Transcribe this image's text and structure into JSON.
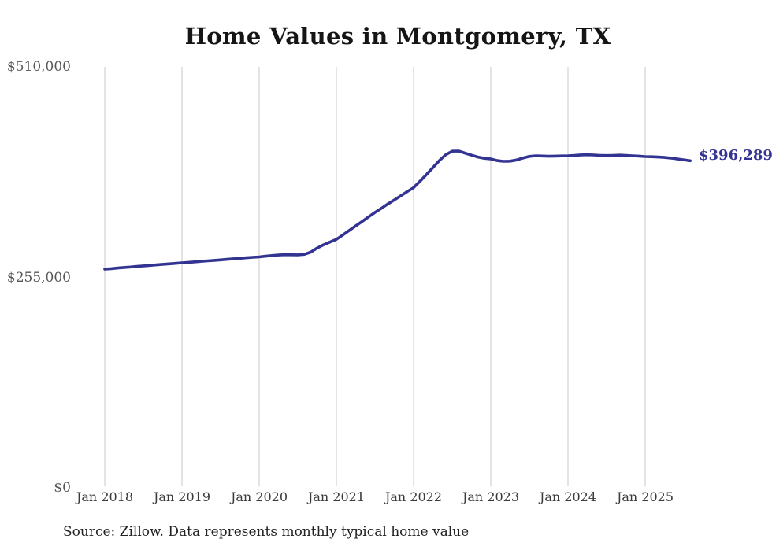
{
  "title": "Home Values in Montgomery, TX",
  "source_note": "Source: Zillow. Data represents monthly typical home value",
  "latest_value_label": "$396,289",
  "colors": {
    "line": "#333392",
    "grid": "#c9c9c9",
    "title": "#151515",
    "y_tick_label": "#565656",
    "x_tick_label": "#3a3a3a",
    "end_label": "#333392",
    "source": "#222222",
    "background": "#ffffff"
  },
  "chart_data": {
    "type": "line",
    "title": "Home Values in Montgomery, TX",
    "series_name": "Monthly typical home value",
    "xlabel": "",
    "ylabel": "",
    "ylim": [
      0,
      510000
    ],
    "grid": "vertical-only",
    "legend": "none",
    "end_label": "$396,289",
    "y_ticks": [
      {
        "value": 0,
        "label": "$0"
      },
      {
        "value": 255000,
        "label": "$255,000"
      },
      {
        "value": 510000,
        "label": "$510,000"
      }
    ],
    "x_ticks": [
      "Jan 2018",
      "Jan 2019",
      "Jan 2020",
      "Jan 2021",
      "Jan 2022",
      "Jan 2023",
      "Jan 2024",
      "Jan 2025"
    ],
    "months": [
      "2018-01",
      "2018-02",
      "2018-03",
      "2018-04",
      "2018-05",
      "2018-06",
      "2018-07",
      "2018-08",
      "2018-09",
      "2018-10",
      "2018-11",
      "2018-12",
      "2019-01",
      "2019-02",
      "2019-03",
      "2019-04",
      "2019-05",
      "2019-06",
      "2019-07",
      "2019-08",
      "2019-09",
      "2019-10",
      "2019-11",
      "2019-12",
      "2020-01",
      "2020-02",
      "2020-03",
      "2020-04",
      "2020-05",
      "2020-06",
      "2020-07",
      "2020-08",
      "2020-09",
      "2020-10",
      "2020-11",
      "2020-12",
      "2021-01",
      "2021-02",
      "2021-03",
      "2021-04",
      "2021-05",
      "2021-06",
      "2021-07",
      "2021-08",
      "2021-09",
      "2021-10",
      "2021-11",
      "2021-12",
      "2022-01",
      "2022-02",
      "2022-03",
      "2022-04",
      "2022-05",
      "2022-06",
      "2022-07",
      "2022-08",
      "2022-09",
      "2022-10",
      "2022-11",
      "2022-12",
      "2023-01",
      "2023-02",
      "2023-03",
      "2023-04",
      "2023-05",
      "2023-06",
      "2023-07",
      "2023-08",
      "2023-09",
      "2023-10",
      "2023-11",
      "2023-12",
      "2024-01",
      "2024-02",
      "2024-03",
      "2024-04",
      "2024-05",
      "2024-06",
      "2024-07",
      "2024-08",
      "2024-09",
      "2024-10",
      "2024-11",
      "2024-12",
      "2025-01",
      "2025-02",
      "2025-03",
      "2025-04",
      "2025-05",
      "2025-06",
      "2025-07",
      "2025-08"
    ],
    "values": [
      265000,
      265600,
      266300,
      267000,
      267600,
      268300,
      268900,
      269500,
      270200,
      270800,
      271400,
      272000,
      272600,
      273200,
      273800,
      274400,
      275000,
      275600,
      276200,
      276800,
      277500,
      278100,
      278700,
      279300,
      279800,
      280600,
      281400,
      282100,
      282500,
      282400,
      282300,
      282800,
      285500,
      290500,
      294500,
      297700,
      301000,
      306400,
      311800,
      317300,
      322700,
      328200,
      333600,
      338700,
      343800,
      348800,
      353800,
      358800,
      363700,
      371500,
      379500,
      388000,
      396500,
      403500,
      407800,
      408000,
      405500,
      403000,
      400800,
      399200,
      398500,
      396500,
      395600,
      395800,
      397200,
      399500,
      401500,
      402300,
      402000,
      401700,
      401900,
      402100,
      402300,
      402700,
      403300,
      403500,
      403200,
      402800,
      402600,
      402800,
      403000,
      402700,
      402300,
      401900,
      401300,
      401100,
      400800,
      400300,
      399500,
      398500,
      397400,
      396289
    ]
  }
}
